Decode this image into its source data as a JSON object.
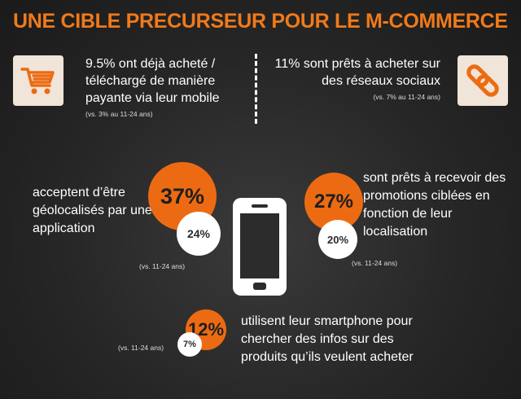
{
  "title": "UNE CIBLE PRECURSEUR POUR LE M-COMMERCE",
  "top_left": {
    "text": "9.5% ont déjà acheté / téléchargé de manière payante via leur mobile",
    "note": "(vs. 3% au 11-24 ans)",
    "icon": "shopping-cart-icon"
  },
  "top_right": {
    "text": "11% sont prêts à acheter sur des réseaux sociaux",
    "note": "(vs. 7% au 11-24 ans)",
    "icon": "chain-link-icon"
  },
  "geo": {
    "text": "acceptent d’être géolocalisés par une application",
    "value": "37%",
    "compare_value": "24%",
    "note": "(vs. 11-24 ans)"
  },
  "promo": {
    "text": "sont prêts à recevoir des promotions ciblées en fonction de leur localisation",
    "value": "27%",
    "compare_value": "20%",
    "note": "(vs. 11-24 ans)"
  },
  "search": {
    "text": "utilisent leur smartphone pour chercher des infos sur des produits qu’ils veulent acheter",
    "value": "12%",
    "compare_value": "7%",
    "note": "(vs. 11-24 ans)"
  },
  "center_icon": "smartphone-icon",
  "colors": {
    "accent": "#ec6b12",
    "title": "#f07a1a",
    "icon_bg": "#f1e4d8"
  }
}
